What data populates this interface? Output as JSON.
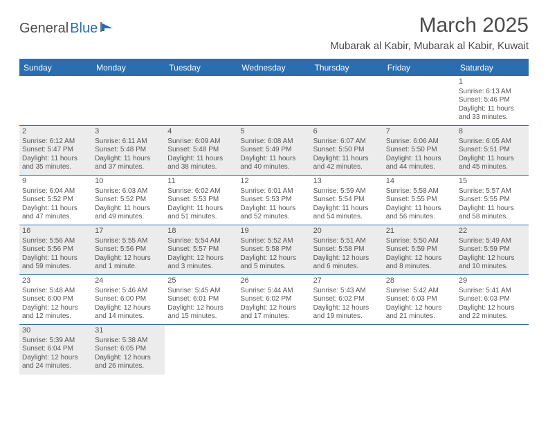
{
  "logo": {
    "part1": "General",
    "part2": "Blue"
  },
  "title": "March 2025",
  "location": "Mubarak al Kabir, Mubarak al Kabir, Kuwait",
  "colors": {
    "accent": "#2a6db0",
    "shaded": "#ececec",
    "text": "#555555",
    "background": "#ffffff"
  },
  "day_headers": [
    "Sunday",
    "Monday",
    "Tuesday",
    "Wednesday",
    "Thursday",
    "Friday",
    "Saturday"
  ],
  "weeks": [
    [
      {
        "blank": true
      },
      {
        "blank": true
      },
      {
        "blank": true
      },
      {
        "blank": true
      },
      {
        "blank": true
      },
      {
        "blank": true
      },
      {
        "day": "1",
        "sunrise": "Sunrise: 6:13 AM",
        "sunset": "Sunset: 5:46 PM",
        "daylight": "Daylight: 11 hours and 33 minutes.",
        "shaded": false
      }
    ],
    [
      {
        "day": "2",
        "sunrise": "Sunrise: 6:12 AM",
        "sunset": "Sunset: 5:47 PM",
        "daylight": "Daylight: 11 hours and 35 minutes.",
        "shaded": true
      },
      {
        "day": "3",
        "sunrise": "Sunrise: 6:11 AM",
        "sunset": "Sunset: 5:48 PM",
        "daylight": "Daylight: 11 hours and 37 minutes.",
        "shaded": true
      },
      {
        "day": "4",
        "sunrise": "Sunrise: 6:09 AM",
        "sunset": "Sunset: 5:48 PM",
        "daylight": "Daylight: 11 hours and 38 minutes.",
        "shaded": true
      },
      {
        "day": "5",
        "sunrise": "Sunrise: 6:08 AM",
        "sunset": "Sunset: 5:49 PM",
        "daylight": "Daylight: 11 hours and 40 minutes.",
        "shaded": true
      },
      {
        "day": "6",
        "sunrise": "Sunrise: 6:07 AM",
        "sunset": "Sunset: 5:50 PM",
        "daylight": "Daylight: 11 hours and 42 minutes.",
        "shaded": true
      },
      {
        "day": "7",
        "sunrise": "Sunrise: 6:06 AM",
        "sunset": "Sunset: 5:50 PM",
        "daylight": "Daylight: 11 hours and 44 minutes.",
        "shaded": true
      },
      {
        "day": "8",
        "sunrise": "Sunrise: 6:05 AM",
        "sunset": "Sunset: 5:51 PM",
        "daylight": "Daylight: 11 hours and 45 minutes.",
        "shaded": true
      }
    ],
    [
      {
        "day": "9",
        "sunrise": "Sunrise: 6:04 AM",
        "sunset": "Sunset: 5:52 PM",
        "daylight": "Daylight: 11 hours and 47 minutes.",
        "shaded": false
      },
      {
        "day": "10",
        "sunrise": "Sunrise: 6:03 AM",
        "sunset": "Sunset: 5:52 PM",
        "daylight": "Daylight: 11 hours and 49 minutes.",
        "shaded": false
      },
      {
        "day": "11",
        "sunrise": "Sunrise: 6:02 AM",
        "sunset": "Sunset: 5:53 PM",
        "daylight": "Daylight: 11 hours and 51 minutes.",
        "shaded": false
      },
      {
        "day": "12",
        "sunrise": "Sunrise: 6:01 AM",
        "sunset": "Sunset: 5:53 PM",
        "daylight": "Daylight: 11 hours and 52 minutes.",
        "shaded": false
      },
      {
        "day": "13",
        "sunrise": "Sunrise: 5:59 AM",
        "sunset": "Sunset: 5:54 PM",
        "daylight": "Daylight: 11 hours and 54 minutes.",
        "shaded": false
      },
      {
        "day": "14",
        "sunrise": "Sunrise: 5:58 AM",
        "sunset": "Sunset: 5:55 PM",
        "daylight": "Daylight: 11 hours and 56 minutes.",
        "shaded": false
      },
      {
        "day": "15",
        "sunrise": "Sunrise: 5:57 AM",
        "sunset": "Sunset: 5:55 PM",
        "daylight": "Daylight: 11 hours and 58 minutes.",
        "shaded": false
      }
    ],
    [
      {
        "day": "16",
        "sunrise": "Sunrise: 5:56 AM",
        "sunset": "Sunset: 5:56 PM",
        "daylight": "Daylight: 11 hours and 59 minutes.",
        "shaded": true
      },
      {
        "day": "17",
        "sunrise": "Sunrise: 5:55 AM",
        "sunset": "Sunset: 5:56 PM",
        "daylight": "Daylight: 12 hours and 1 minute.",
        "shaded": true
      },
      {
        "day": "18",
        "sunrise": "Sunrise: 5:54 AM",
        "sunset": "Sunset: 5:57 PM",
        "daylight": "Daylight: 12 hours and 3 minutes.",
        "shaded": true
      },
      {
        "day": "19",
        "sunrise": "Sunrise: 5:52 AM",
        "sunset": "Sunset: 5:58 PM",
        "daylight": "Daylight: 12 hours and 5 minutes.",
        "shaded": true
      },
      {
        "day": "20",
        "sunrise": "Sunrise: 5:51 AM",
        "sunset": "Sunset: 5:58 PM",
        "daylight": "Daylight: 12 hours and 6 minutes.",
        "shaded": true
      },
      {
        "day": "21",
        "sunrise": "Sunrise: 5:50 AM",
        "sunset": "Sunset: 5:59 PM",
        "daylight": "Daylight: 12 hours and 8 minutes.",
        "shaded": true
      },
      {
        "day": "22",
        "sunrise": "Sunrise: 5:49 AM",
        "sunset": "Sunset: 5:59 PM",
        "daylight": "Daylight: 12 hours and 10 minutes.",
        "shaded": true
      }
    ],
    [
      {
        "day": "23",
        "sunrise": "Sunrise: 5:48 AM",
        "sunset": "Sunset: 6:00 PM",
        "daylight": "Daylight: 12 hours and 12 minutes.",
        "shaded": false
      },
      {
        "day": "24",
        "sunrise": "Sunrise: 5:46 AM",
        "sunset": "Sunset: 6:00 PM",
        "daylight": "Daylight: 12 hours and 14 minutes.",
        "shaded": false
      },
      {
        "day": "25",
        "sunrise": "Sunrise: 5:45 AM",
        "sunset": "Sunset: 6:01 PM",
        "daylight": "Daylight: 12 hours and 15 minutes.",
        "shaded": false
      },
      {
        "day": "26",
        "sunrise": "Sunrise: 5:44 AM",
        "sunset": "Sunset: 6:02 PM",
        "daylight": "Daylight: 12 hours and 17 minutes.",
        "shaded": false
      },
      {
        "day": "27",
        "sunrise": "Sunrise: 5:43 AM",
        "sunset": "Sunset: 6:02 PM",
        "daylight": "Daylight: 12 hours and 19 minutes.",
        "shaded": false
      },
      {
        "day": "28",
        "sunrise": "Sunrise: 5:42 AM",
        "sunset": "Sunset: 6:03 PM",
        "daylight": "Daylight: 12 hours and 21 minutes.",
        "shaded": false
      },
      {
        "day": "29",
        "sunrise": "Sunrise: 5:41 AM",
        "sunset": "Sunset: 6:03 PM",
        "daylight": "Daylight: 12 hours and 22 minutes.",
        "shaded": false
      }
    ],
    [
      {
        "day": "30",
        "sunrise": "Sunrise: 5:39 AM",
        "sunset": "Sunset: 6:04 PM",
        "daylight": "Daylight: 12 hours and 24 minutes.",
        "shaded": true
      },
      {
        "day": "31",
        "sunrise": "Sunrise: 5:38 AM",
        "sunset": "Sunset: 6:05 PM",
        "daylight": "Daylight: 12 hours and 26 minutes.",
        "shaded": true
      },
      {
        "blank": true
      },
      {
        "blank": true
      },
      {
        "blank": true
      },
      {
        "blank": true
      },
      {
        "blank": true
      }
    ]
  ]
}
